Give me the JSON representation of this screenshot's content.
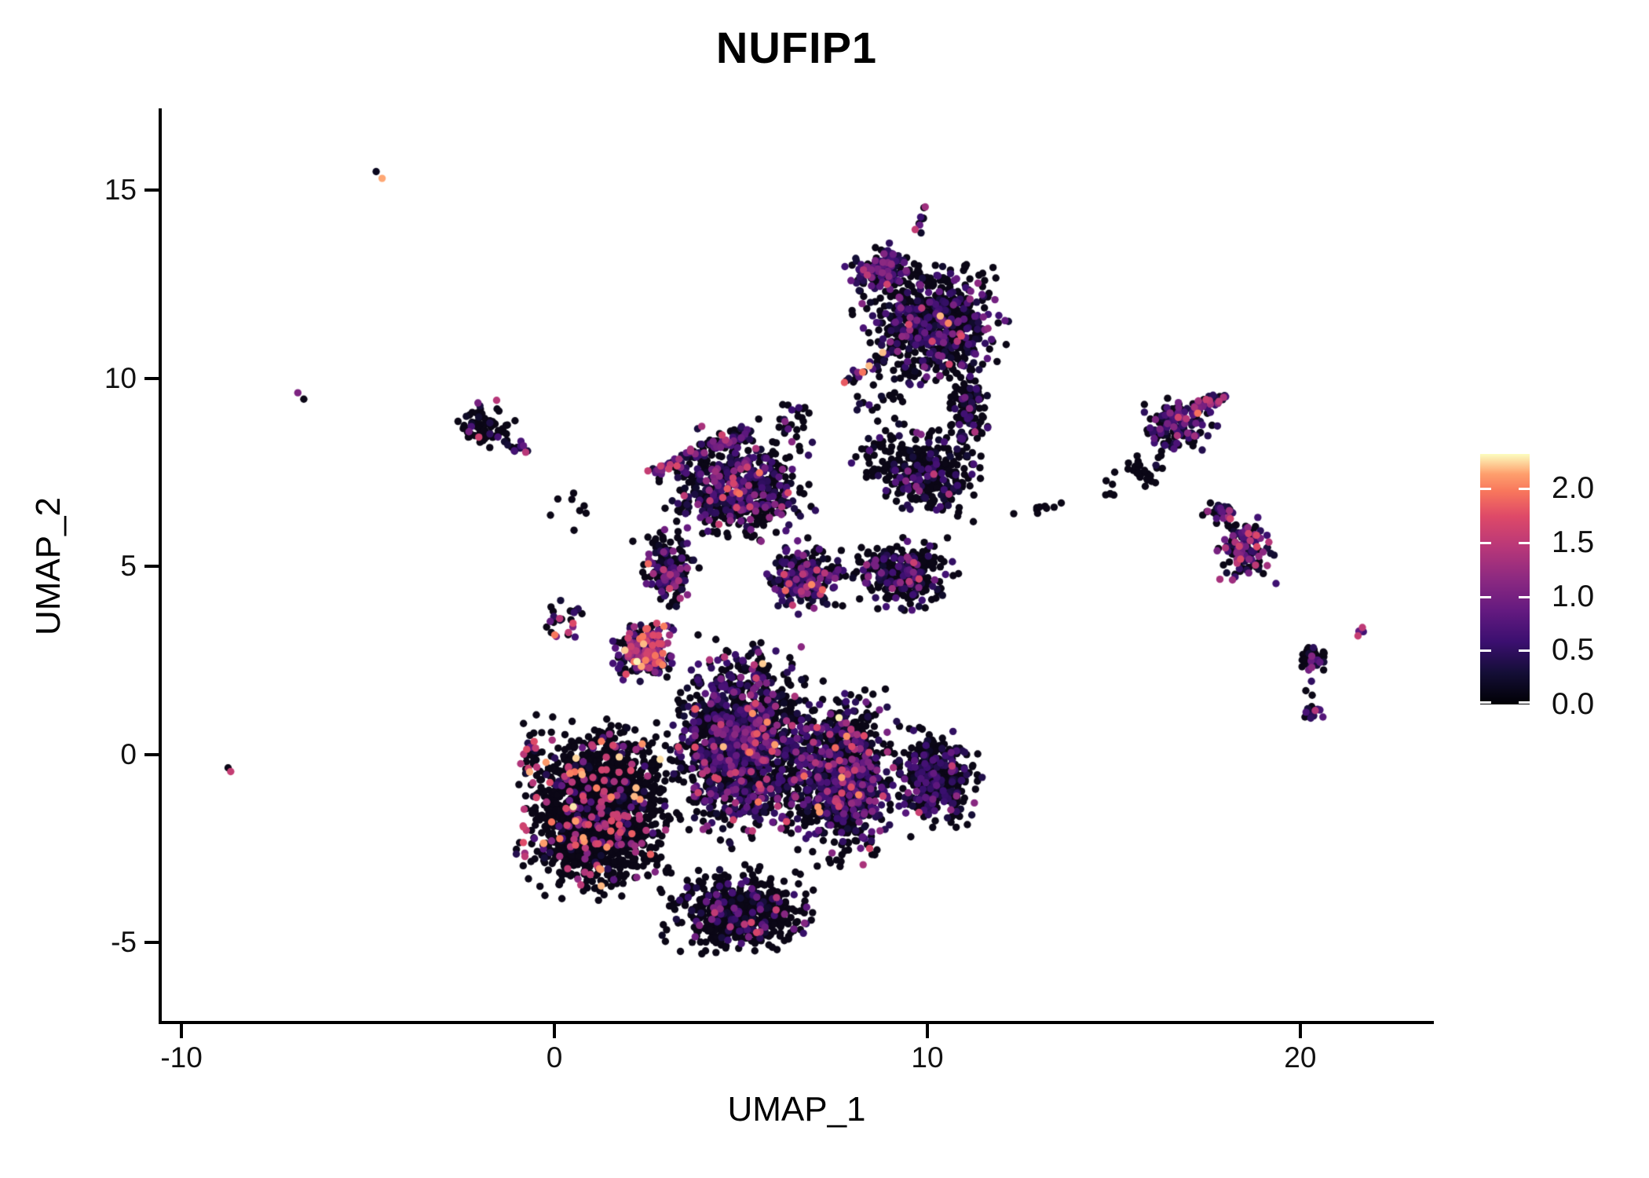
{
  "title": "NUFIP1",
  "axes": {
    "x": {
      "label": "UMAP_1",
      "tick_labels": [
        "-10",
        "0",
        "10",
        "20"
      ],
      "tick_values": [
        -10,
        0,
        10,
        20
      ],
      "range": [
        -10.55,
        23.54
      ]
    },
    "y": {
      "label": "UMAP_2",
      "tick_labels": [
        "15",
        "10",
        "5",
        "0",
        "-5"
      ],
      "tick_values": [
        15,
        10,
        5,
        0,
        -5
      ],
      "range": [
        -7.12,
        17.18
      ]
    }
  },
  "legend": {
    "tick_labels": [
      "2.0",
      "1.5",
      "1.0",
      "0.5",
      "0.0"
    ],
    "tick_values": [
      2.0,
      1.5,
      1.0,
      0.5,
      0.0
    ],
    "vmax": 2.32,
    "colormap": "magma",
    "gradient_stops": [
      [
        0.0,
        "#000004"
      ],
      [
        0.125,
        "#140e36"
      ],
      [
        0.25,
        "#3b0f70"
      ],
      [
        0.375,
        "#641a80"
      ],
      [
        0.5,
        "#8c2981"
      ],
      [
        0.625,
        "#b73779"
      ],
      [
        0.75,
        "#de4968"
      ],
      [
        0.85,
        "#f8765c"
      ],
      [
        0.92,
        "#fe9f6d"
      ],
      [
        1.0,
        "#fcfdbf"
      ]
    ]
  },
  "chart_data": {
    "type": "scatter",
    "title": "NUFIP1",
    "xlabel": "UMAP_1",
    "ylabel": "UMAP_2",
    "xlim": [
      -10.55,
      23.54
    ],
    "ylim": [
      -7.12,
      17.18
    ],
    "x_ticks": [
      -10,
      0,
      10,
      20
    ],
    "y_ticks": [
      -5,
      0,
      5,
      10,
      15
    ],
    "grid": false,
    "legend_position": "right",
    "colorbar": {
      "ticks": [
        0.0,
        0.5,
        1.0,
        1.5,
        2.0
      ],
      "vmax": 2.32,
      "colormap": "magma"
    },
    "point_radius_px": 4.7,
    "seed": 1337,
    "expression_bins": [
      [
        0.0,
        0.0
      ],
      [
        0.18,
        0.72
      ],
      [
        0.75,
        1.2
      ],
      [
        1.25,
        1.75
      ],
      [
        1.8,
        2.3
      ]
    ],
    "clusters": [
      {
        "name": "central-left-mass",
        "type": "blob",
        "c": [
          1.2,
          -1.4
        ],
        "r": [
          2.45,
          2.75
        ],
        "n": 1650,
        "mix": [
          0.855,
          0.035,
          0.025,
          0.06,
          0.025
        ]
      },
      {
        "name": "central-left-edge-accents",
        "type": "line",
        "p": [
          [
            -0.9,
            -3.0
          ],
          [
            -0.6,
            0.6
          ]
        ],
        "w": 0.3,
        "n": 26,
        "mix": [
          0.2,
          0.15,
          0.2,
          0.4,
          0.05
        ]
      },
      {
        "name": "central-mid-mass",
        "type": "blob",
        "c": [
          5.1,
          0.3
        ],
        "r": [
          2.3,
          3.1
        ],
        "n": 1500,
        "mix": [
          0.6,
          0.28,
          0.08,
          0.035,
          0.005
        ]
      },
      {
        "name": "central-right-mass",
        "type": "blob",
        "c": [
          7.7,
          -0.6
        ],
        "r": [
          1.75,
          2.6
        ],
        "n": 950,
        "mix": [
          0.58,
          0.31,
          0.07,
          0.035,
          0.005
        ]
      },
      {
        "name": "central-right-arm",
        "type": "blob",
        "c": [
          10.2,
          -0.7
        ],
        "r": [
          1.45,
          1.7
        ],
        "n": 380,
        "mix": [
          0.63,
          0.3,
          0.05,
          0.02,
          0
        ]
      },
      {
        "name": "central-bottom-tail",
        "type": "blob",
        "c": [
          4.9,
          -4.2
        ],
        "r": [
          2.4,
          1.4
        ],
        "n": 550,
        "mix": [
          0.8,
          0.14,
          0.04,
          0.02,
          0
        ]
      },
      {
        "name": "central-pink-patch",
        "type": "blob",
        "c": [
          2.4,
          2.75
        ],
        "r": [
          1.0,
          0.95
        ],
        "n": 230,
        "mix": [
          0.28,
          0.27,
          0.22,
          0.17,
          0.06
        ]
      },
      {
        "name": "central-left-arc",
        "type": "blob",
        "c": [
          3.0,
          4.9
        ],
        "r": [
          0.95,
          1.3
        ],
        "n": 170,
        "mix": [
          0.55,
          0.28,
          0.1,
          0.06,
          0.01
        ]
      },
      {
        "name": "central-drip",
        "type": "blob",
        "c": [
          0.3,
          3.5
        ],
        "r": [
          0.8,
          0.8
        ],
        "n": 25,
        "mix": [
          0.72,
          0.14,
          0.08,
          0.05,
          0.01
        ]
      },
      {
        "name": "crown-lobe",
        "type": "blob",
        "c": [
          4.9,
          7.1
        ],
        "r": [
          2.35,
          1.85
        ],
        "n": 540,
        "mix": [
          0.55,
          0.3,
          0.1,
          0.045,
          0.005
        ]
      },
      {
        "name": "crown-top-band",
        "type": "line",
        "p": [
          [
            2.5,
            7.5
          ],
          [
            5.3,
            8.65
          ]
        ],
        "w": 0.28,
        "n": 70,
        "mix": [
          0.25,
          0.3,
          0.25,
          0.17,
          0.03
        ]
      },
      {
        "name": "crown-top-sparse",
        "type": "blob",
        "c": [
          6.3,
          8.9
        ],
        "r": [
          1.2,
          0.8
        ],
        "n": 22,
        "mix": [
          0.6,
          0.3,
          0.1,
          0,
          0
        ]
      },
      {
        "name": "neck-lobe",
        "type": "blob",
        "c": [
          6.7,
          4.7
        ],
        "r": [
          1.3,
          1.1
        ],
        "n": 240,
        "mix": [
          0.5,
          0.36,
          0.1,
          0.035,
          0.005
        ]
      },
      {
        "name": "knot-lobe",
        "type": "blob",
        "c": [
          9.9,
          7.5
        ],
        "r": [
          1.75,
          1.5
        ],
        "n": 300,
        "mix": [
          0.72,
          0.24,
          0.03,
          0.01,
          0
        ]
      },
      {
        "name": "hook-lobe",
        "type": "blob",
        "c": [
          9.3,
          4.8
        ],
        "r": [
          1.8,
          1.2
        ],
        "n": 280,
        "mix": [
          0.64,
          0.29,
          0.05,
          0.02,
          0
        ]
      },
      {
        "name": "gap-sparse-1",
        "type": "blob",
        "c": [
          8.8,
          7.9
        ],
        "r": [
          1.3,
          1.1
        ],
        "n": 25,
        "mix": [
          0.8,
          0.2,
          0,
          0,
          0
        ]
      },
      {
        "name": "gap-sparse-2",
        "type": "blob",
        "c": [
          9.0,
          9.3
        ],
        "r": [
          1.5,
          0.8
        ],
        "n": 18,
        "mix": [
          0.85,
          0.15,
          0,
          0,
          0
        ]
      },
      {
        "name": "gap-sparse-3",
        "type": "blob",
        "c": [
          0.5,
          6.5
        ],
        "r": [
          1.2,
          0.9
        ],
        "n": 8,
        "mix": [
          0.85,
          0.15,
          0,
          0,
          0
        ]
      },
      {
        "name": "top-cluster-main",
        "type": "blob",
        "c": [
          10.1,
          11.4
        ],
        "r": [
          2.3,
          2.1
        ],
        "n": 700,
        "mix": [
          0.64,
          0.26,
          0.07,
          0.025,
          0.005
        ]
      },
      {
        "name": "top-cluster-purple-patch",
        "type": "blob",
        "c": [
          8.7,
          12.9
        ],
        "r": [
          1.0,
          0.75
        ],
        "n": 140,
        "mix": [
          0.33,
          0.47,
          0.15,
          0.05,
          0
        ]
      },
      {
        "name": "top-cluster-spur",
        "type": "line",
        "p": [
          [
            9.75,
            13.9
          ],
          [
            9.95,
            14.6
          ]
        ],
        "w": 0.15,
        "n": 10,
        "mix": [
          0.3,
          0.3,
          0.2,
          0.2,
          0
        ]
      },
      {
        "name": "top-cluster-left-arm",
        "type": "line",
        "p": [
          [
            7.8,
            9.9
          ],
          [
            8.9,
            10.6
          ]
        ],
        "w": 0.2,
        "n": 22,
        "mix": [
          0.45,
          0.3,
          0.15,
          0.05,
          0.05
        ]
      },
      {
        "name": "top-cluster-tail",
        "type": "blob",
        "c": [
          11.1,
          9.3
        ],
        "r": [
          0.75,
          1.3
        ],
        "n": 110,
        "mix": [
          0.78,
          0.17,
          0.04,
          0.01,
          0
        ]
      },
      {
        "name": "top-cluster-drip",
        "type": "line",
        "p": [
          [
            10.9,
            8.6
          ],
          [
            11.15,
            7.8
          ]
        ],
        "w": 0.15,
        "n": 14,
        "mix": [
          0.85,
          0.15,
          0,
          0,
          0
        ]
      },
      {
        "name": "bridge-dots",
        "type": "line",
        "p": [
          [
            12.2,
            6.35
          ],
          [
            13.6,
            6.65
          ]
        ],
        "w": 0.12,
        "n": 9,
        "mix": [
          0.9,
          0.1,
          0,
          0,
          0
        ]
      },
      {
        "name": "upper-left-cluster",
        "type": "blob",
        "c": [
          -1.85,
          8.75
        ],
        "r": [
          1.05,
          0.8
        ],
        "n": 70,
        "mix": [
          0.87,
          0.09,
          0.03,
          0.01,
          0
        ]
      },
      {
        "name": "upper-left-cluster-tip",
        "type": "blob",
        "c": [
          -0.95,
          8.15
        ],
        "r": [
          0.4,
          0.28
        ],
        "n": 10,
        "mix": [
          0.25,
          0.35,
          0.2,
          0.1,
          0.1
        ]
      },
      {
        "name": "right-cluster-A",
        "type": "blob",
        "c": [
          16.7,
          8.75
        ],
        "r": [
          1.25,
          0.95
        ],
        "n": 150,
        "mix": [
          0.48,
          0.34,
          0.12,
          0.05,
          0.01
        ]
      },
      {
        "name": "right-cluster-A-wing",
        "type": "line",
        "p": [
          [
            17.1,
            9.15
          ],
          [
            18.0,
            9.55
          ]
        ],
        "w": 0.25,
        "n": 40,
        "mix": [
          0.35,
          0.25,
          0.2,
          0.18,
          0.02
        ]
      },
      {
        "name": "right-cluster-A-tail",
        "type": "blob",
        "c": [
          15.8,
          7.6
        ],
        "r": [
          0.8,
          0.6
        ],
        "n": 30,
        "mix": [
          0.85,
          0.15,
          0,
          0,
          0
        ]
      },
      {
        "name": "right-cluster-A-sparse",
        "type": "blob",
        "c": [
          15.0,
          7.0
        ],
        "r": [
          0.5,
          0.4
        ],
        "n": 6,
        "mix": [
          0.9,
          0.1,
          0,
          0,
          0
        ]
      },
      {
        "name": "right-cluster-B",
        "type": "blob",
        "c": [
          18.5,
          5.5
        ],
        "r": [
          0.95,
          1.15
        ],
        "n": 130,
        "mix": [
          0.42,
          0.33,
          0.14,
          0.11,
          0
        ]
      },
      {
        "name": "right-cluster-B-top",
        "type": "blob",
        "c": [
          17.9,
          6.45
        ],
        "r": [
          0.55,
          0.4
        ],
        "n": 30,
        "mix": [
          0.55,
          0.25,
          0.1,
          0.1,
          0
        ]
      },
      {
        "name": "right-cluster-C-y",
        "type": "blob",
        "c": [
          20.35,
          2.6
        ],
        "r": [
          0.55,
          0.5
        ],
        "n": 40,
        "mix": [
          0.6,
          0.3,
          0.08,
          0.02,
          0
        ]
      },
      {
        "name": "right-cluster-C-bottom",
        "type": "blob",
        "c": [
          20.35,
          1.15
        ],
        "r": [
          0.3,
          0.3
        ],
        "n": 16,
        "mix": [
          0.3,
          0.5,
          0.15,
          0.05,
          0
        ]
      },
      {
        "name": "right-cluster-C-dash",
        "type": "line",
        "p": [
          [
            21.35,
            3.05
          ],
          [
            21.7,
            3.35
          ]
        ],
        "w": 0.1,
        "n": 5,
        "mix": [
          0.1,
          0.4,
          0.2,
          0.3,
          0
        ]
      }
    ],
    "outlier_points": [
      {
        "name": "outlier-top",
        "pts": [
          [
            -4.78,
            15.5,
            0.15
          ],
          [
            -4.62,
            15.32,
            2.15
          ]
        ]
      },
      {
        "name": "outlier-upper-left",
        "pts": [
          [
            -6.72,
            9.45,
            0.0
          ],
          [
            -6.88,
            9.62,
            1.05
          ]
        ]
      },
      {
        "name": "outlier-bottom-left",
        "pts": [
          [
            -8.75,
            -0.35,
            0.0
          ],
          [
            -8.68,
            -0.45,
            1.55
          ]
        ]
      },
      {
        "name": "upper-left-magenta-dots",
        "pts": [
          [
            -2.05,
            9.35,
            1.0
          ],
          [
            -1.55,
            9.42,
            1.45
          ]
        ]
      },
      {
        "name": "right-B-isolated",
        "pts": [
          [
            19.35,
            4.55,
            0.6
          ]
        ]
      },
      {
        "name": "right-C-mid-dots",
        "pts": [
          [
            20.3,
            1.95,
            0.5
          ],
          [
            20.15,
            1.7,
            0.0
          ],
          [
            20.32,
            1.58,
            0.0
          ]
        ]
      }
    ]
  }
}
